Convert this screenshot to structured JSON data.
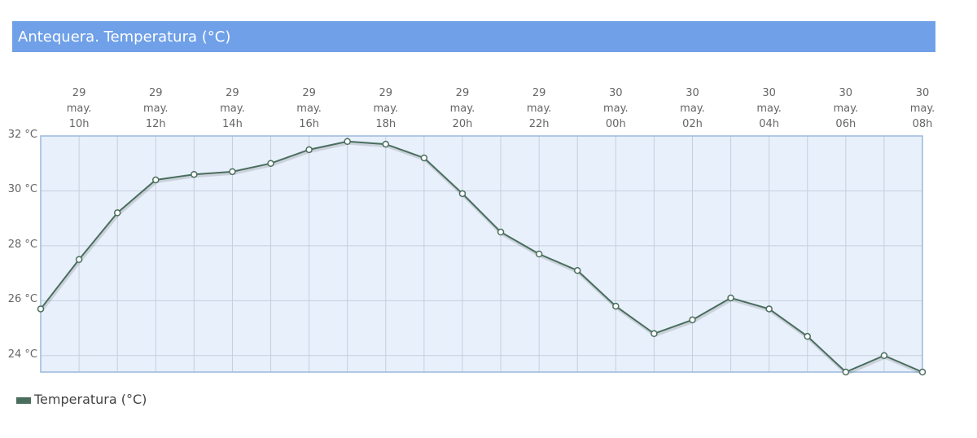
{
  "chart_data": {
    "type": "line",
    "title": "Antequera. Temperatura (°C)",
    "categories": [
      null,
      "29\nmay.\n10h",
      null,
      "29\nmay.\n12h",
      null,
      "29\nmay.\n14h",
      null,
      "29\nmay.\n16h",
      null,
      "29\nmay.\n18h",
      null,
      "29\nmay.\n20h",
      null,
      "29\nmay.\n22h",
      null,
      "30\nmay.\n00h",
      null,
      "30\nmay.\n02h",
      null,
      "30\nmay.\n04h",
      null,
      "30\nmay.\n06h",
      null,
      "30\nmay.\n08h"
    ],
    "series": [
      {
        "name": "Temperatura (°C)",
        "color": "#4a6e5e",
        "values": [
          25.7,
          27.5,
          29.2,
          30.4,
          30.6,
          30.7,
          31.0,
          31.5,
          31.8,
          31.7,
          31.2,
          29.9,
          28.5,
          27.7,
          27.1,
          25.8,
          24.8,
          25.3,
          26.1,
          25.7,
          24.7,
          23.4,
          24.0,
          23.4
        ]
      }
    ],
    "ylim": [
      23.4,
      32
    ],
    "yticks": [
      {
        "value": 24,
        "label": "24 °C"
      },
      {
        "value": 26,
        "label": "26 °C"
      },
      {
        "value": 28,
        "label": "28 °C"
      },
      {
        "value": 30,
        "label": "30 °C"
      },
      {
        "value": 32,
        "label": "32 °C"
      }
    ],
    "grid": true
  }
}
